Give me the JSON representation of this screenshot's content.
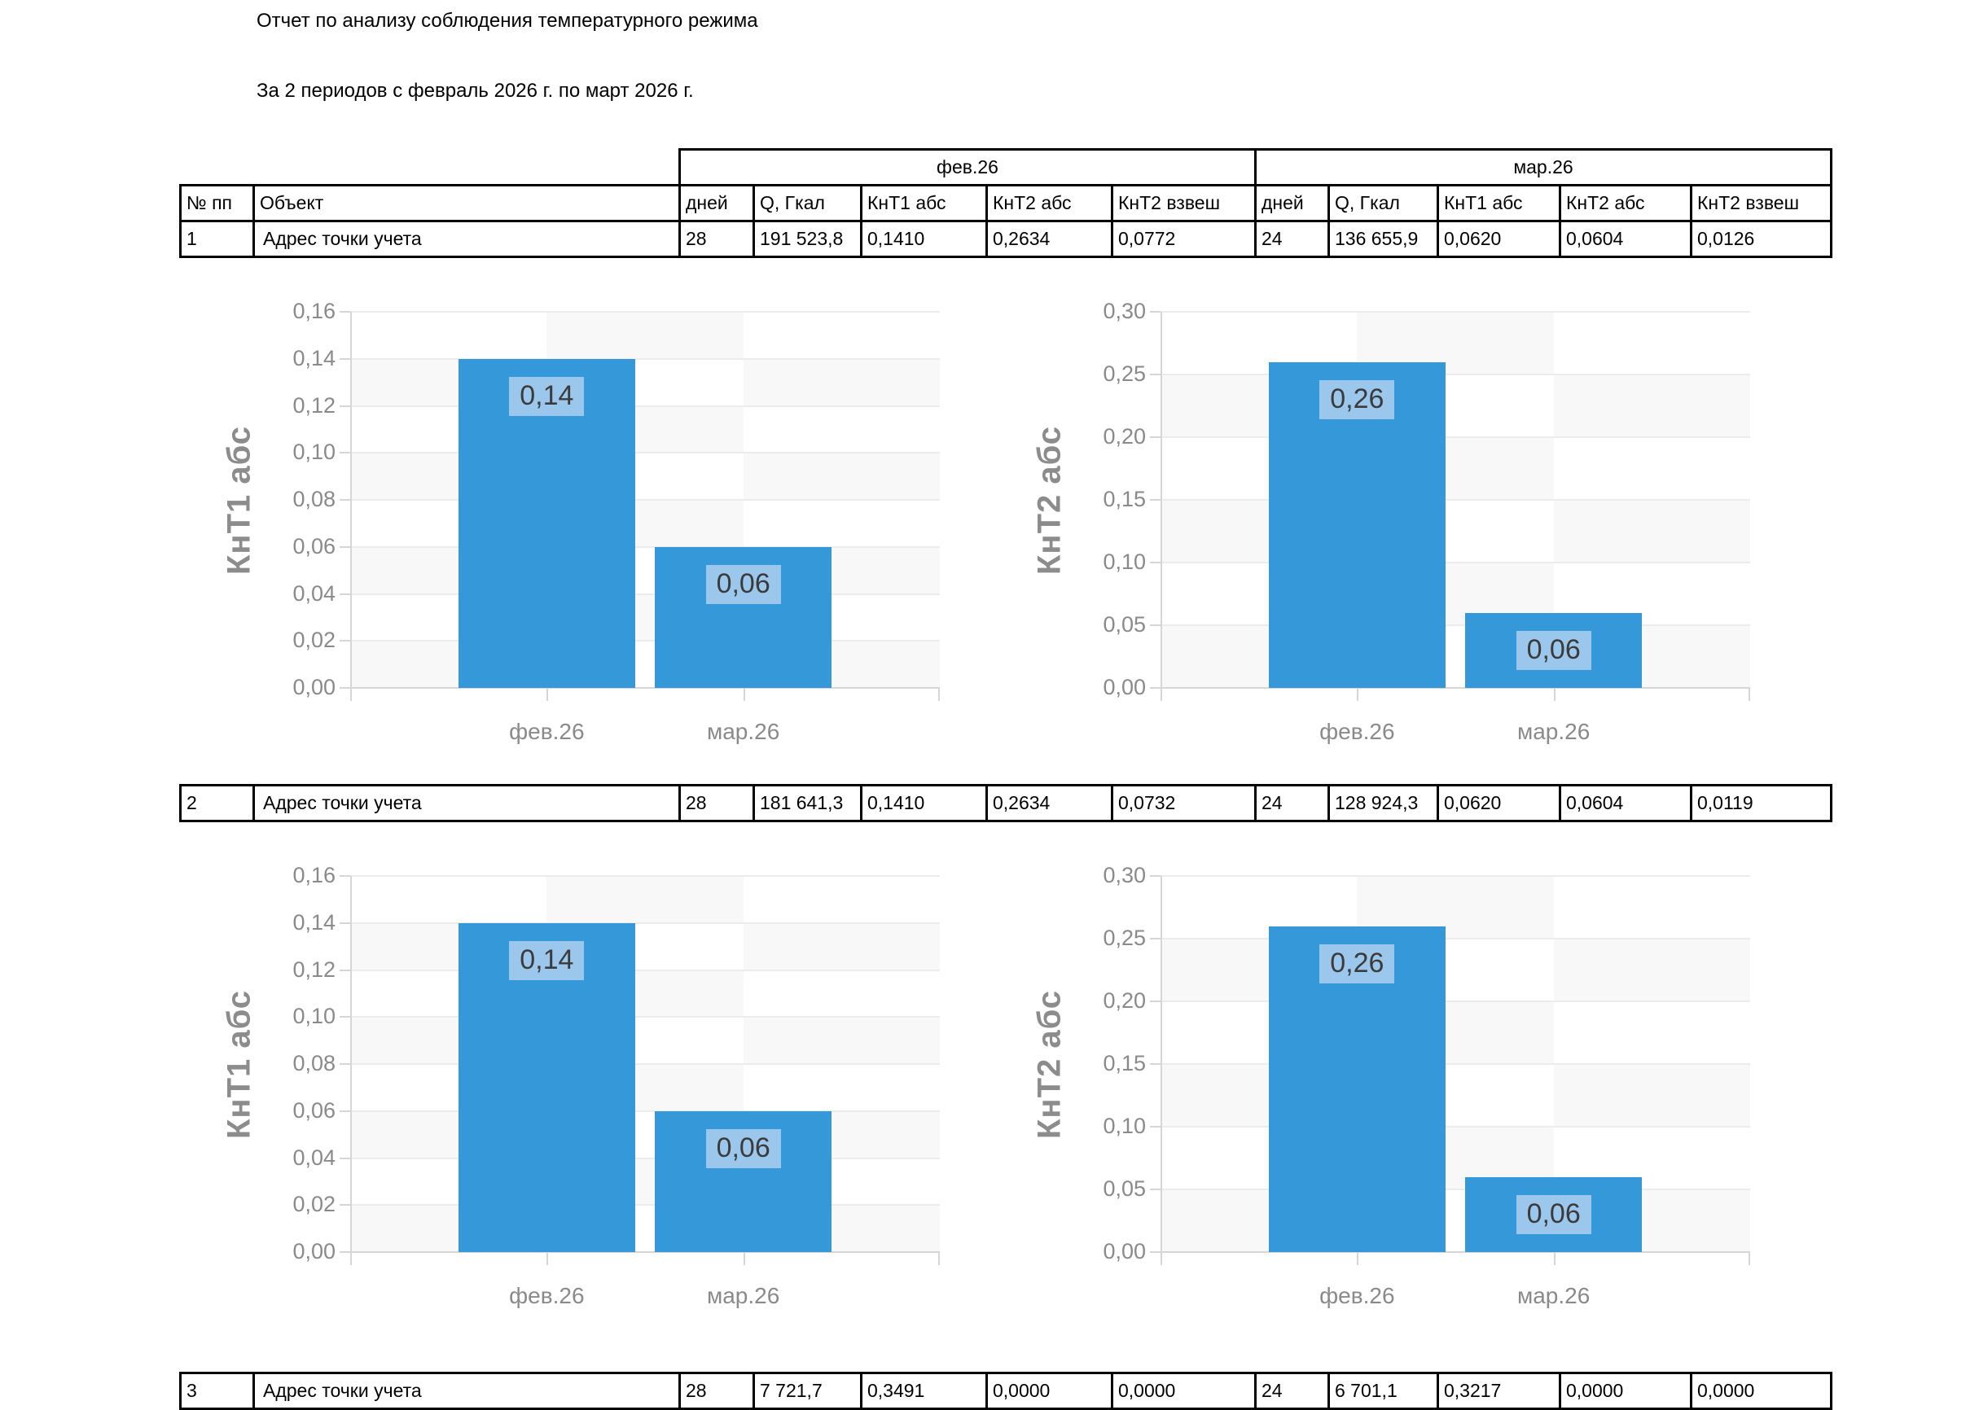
{
  "page": {
    "title": "Отчет по анализу соблюдения температурного режима",
    "subtitle": "За 2 периодов с февраль 2026 г. по март 2026 г."
  },
  "table": {
    "corner_headers": [
      "№ пп",
      "Объект"
    ],
    "period_groups": [
      {
        "label": "фев.26",
        "columns": [
          "дней",
          "Q, Гкал",
          "КнТ1 абс",
          "КнТ2 абс",
          "КнТ2 взвеш"
        ]
      },
      {
        "label": "мар.26",
        "columns": [
          "дней",
          "Q, Гкал",
          "КнТ1 абс",
          "КнТ2 абс",
          "КнТ2 взвеш"
        ]
      }
    ],
    "rows": [
      {
        "num": "1",
        "object": "Адрес точки учета",
        "values": [
          "28",
          "191 523,8",
          "0,1410",
          "0,2634",
          "0,0772",
          "24",
          "136 655,9",
          "0,0620",
          "0,0604",
          "0,0126"
        ]
      },
      {
        "num": "2",
        "object": "Адрес точки учета",
        "values": [
          "28",
          "181 641,3",
          "0,1410",
          "0,2634",
          "0,0732",
          "24",
          "128 924,3",
          "0,0620",
          "0,0604",
          "0,0119"
        ]
      },
      {
        "num": "3",
        "object": "Адрес точки учета",
        "values": [
          "28",
          "7 721,7",
          "0,3491",
          "0,0000",
          "0,0000",
          "24",
          "6 701,1",
          "0,3217",
          "0,0000",
          "0,0000"
        ]
      }
    ]
  },
  "chart_data": [
    {
      "type": "bar",
      "title": "",
      "xlabel": "",
      "ylabel": "КнТ1 абс",
      "categories": [
        "фев.26",
        "мар.26"
      ],
      "values": [
        0.14,
        0.06
      ],
      "value_labels": [
        "0,14",
        "0,06"
      ],
      "ylim": [
        0,
        0.16
      ],
      "ytick_step": 0.02,
      "ytick_labels": [
        "0,16",
        "0,14",
        "0,12",
        "0,10",
        "0,08",
        "0,06",
        "0,04",
        "0,02",
        "0,00"
      ],
      "grid": true,
      "legend_position": "none",
      "row_ref": "1"
    },
    {
      "type": "bar",
      "title": "",
      "xlabel": "",
      "ylabel": "КнТ2 абс",
      "categories": [
        "фев.26",
        "мар.26"
      ],
      "values": [
        0.26,
        0.06
      ],
      "value_labels": [
        "0,26",
        "0,06"
      ],
      "ylim": [
        0,
        0.3
      ],
      "ytick_step": 0.05,
      "ytick_labels": [
        "0,30",
        "0,25",
        "0,20",
        "0,15",
        "0,10",
        "0,05",
        "0,00"
      ],
      "grid": true,
      "legend_position": "none",
      "row_ref": "1"
    },
    {
      "type": "bar",
      "title": "",
      "xlabel": "",
      "ylabel": "КнТ1 абс",
      "categories": [
        "фев.26",
        "мар.26"
      ],
      "values": [
        0.14,
        0.06
      ],
      "value_labels": [
        "0,14",
        "0,06"
      ],
      "ylim": [
        0,
        0.16
      ],
      "ytick_step": 0.02,
      "ytick_labels": [
        "0,16",
        "0,14",
        "0,12",
        "0,10",
        "0,08",
        "0,06",
        "0,04",
        "0,02",
        "0,00"
      ],
      "grid": true,
      "legend_position": "none",
      "row_ref": "2"
    },
    {
      "type": "bar",
      "title": "",
      "xlabel": "",
      "ylabel": "КнТ2 абс",
      "categories": [
        "фев.26",
        "мар.26"
      ],
      "values": [
        0.26,
        0.06
      ],
      "value_labels": [
        "0,26",
        "0,06"
      ],
      "ylim": [
        0,
        0.3
      ],
      "ytick_step": 0.05,
      "ytick_labels": [
        "0,30",
        "0,25",
        "0,20",
        "0,15",
        "0,10",
        "0,05",
        "0,00"
      ],
      "grid": true,
      "legend_position": "none",
      "row_ref": "2"
    }
  ],
  "colors": {
    "bar": "#3498d9",
    "bar_label_bg": "#9cc7ec",
    "bar_label_text": "#3b3b3b",
    "axis_text": "#8a8a8a",
    "grid_line": "#ececec",
    "axis_line": "#d6d6d6",
    "band": "#f8f8f8",
    "table_border": "#000000"
  }
}
